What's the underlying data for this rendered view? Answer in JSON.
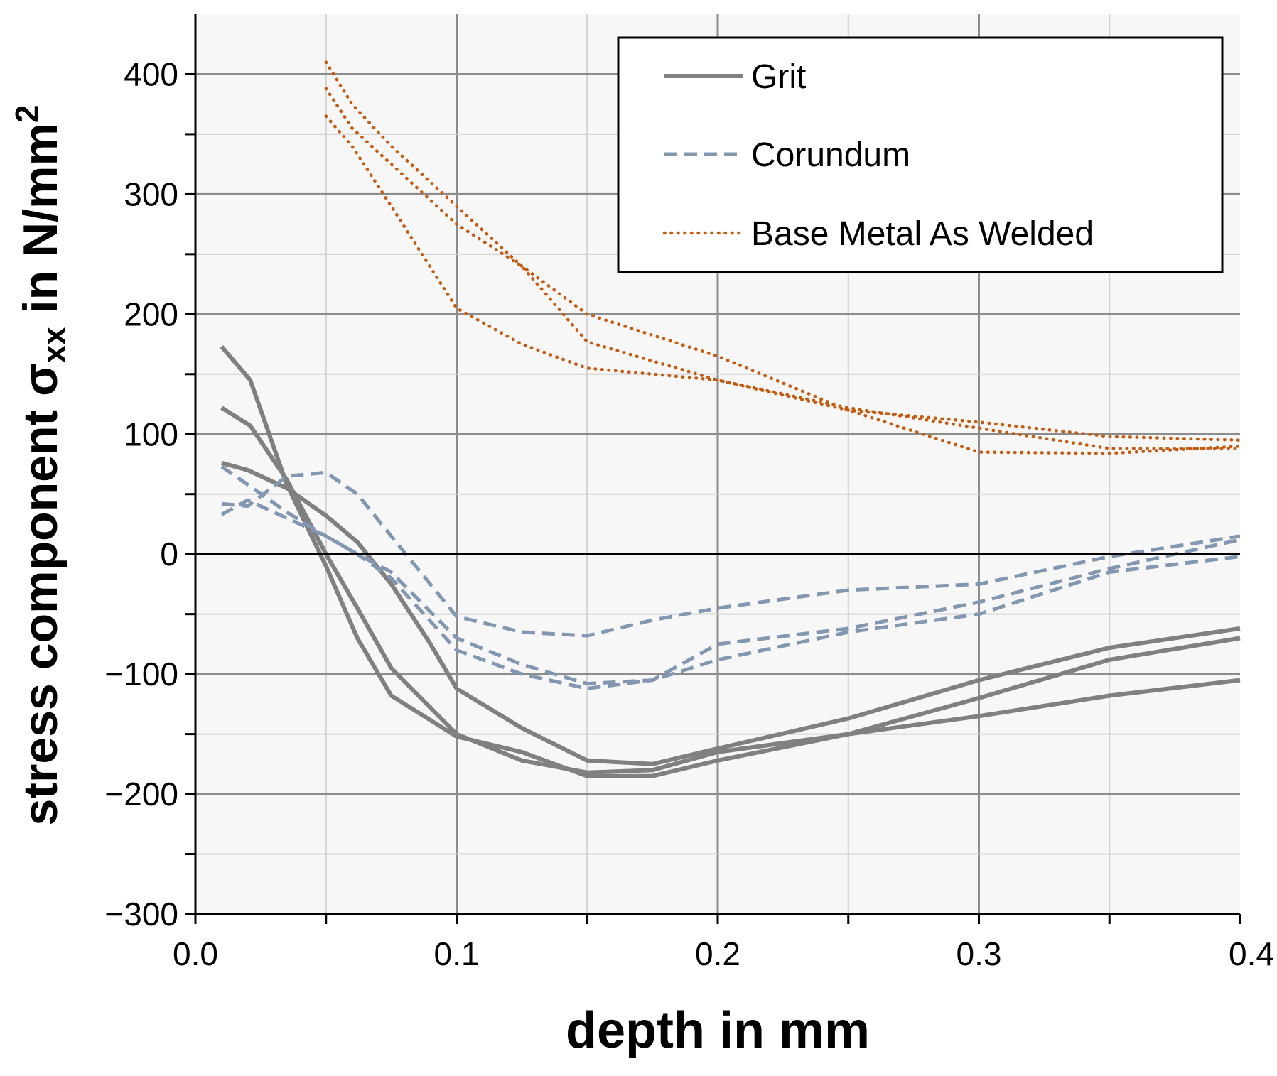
{
  "chart_data": {
    "type": "line",
    "xlabel": "depth in mm",
    "ylabel": {
      "main": "stress component σ",
      "sub": "xx",
      "unit": " in N/mm",
      "sup": "2"
    },
    "xlim": [
      0,
      0.4
    ],
    "ylim": [
      -300,
      450
    ],
    "x_ticks": [
      0,
      0.1,
      0.2,
      0.3,
      0.4
    ],
    "x_tick_labels": [
      "0.0",
      "0.1",
      "0.2",
      "0.3",
      "0.4"
    ],
    "x_minor_ticks": [
      0.05,
      0.15,
      0.25,
      0.35
    ],
    "y_ticks": [
      -300,
      -200,
      -100,
      0,
      100,
      200,
      300,
      400
    ],
    "y_tick_labels": [
      "−300",
      "−200",
      "−100",
      "0",
      "100",
      "200",
      "300",
      "400"
    ],
    "y_minor_ticks": [
      -250,
      -150,
      -50,
      50,
      150,
      250,
      350
    ],
    "grid": true,
    "legend_position": "top-right",
    "legend": [
      {
        "label": "Grit",
        "style": "solid",
        "color": "#808080"
      },
      {
        "label": "Corundum",
        "style": "dashed",
        "color": "#8497B0"
      },
      {
        "label": "Base Metal As Welded",
        "style": "dotted",
        "color": "#C55A11"
      }
    ],
    "series": [
      {
        "name": "Grit",
        "group": "Grit",
        "style": "solid",
        "color": "#808080",
        "x": [
          0.01,
          0.021,
          0.035,
          0.05,
          0.062,
          0.075,
          0.1,
          0.125,
          0.15,
          0.175,
          0.2,
          0.25,
          0.3,
          0.35,
          0.4
        ],
        "y": [
          173,
          145,
          58,
          -10,
          -70,
          -118,
          -152,
          -165,
          -185,
          -185,
          -172,
          -150,
          -120,
          -88,
          -70
        ]
      },
      {
        "name": "Grit",
        "group": "Grit",
        "style": "solid",
        "color": "#808080",
        "x": [
          0.01,
          0.021,
          0.035,
          0.05,
          0.062,
          0.075,
          0.1,
          0.125,
          0.15,
          0.175,
          0.2,
          0.25,
          0.3,
          0.35,
          0.4
        ],
        "y": [
          122,
          107,
          62,
          0,
          -45,
          -95,
          -150,
          -172,
          -182,
          -180,
          -165,
          -150,
          -135,
          -118,
          -105
        ]
      },
      {
        "name": "Grit",
        "group": "Grit",
        "style": "solid",
        "color": "#808080",
        "x": [
          0.01,
          0.02,
          0.035,
          0.05,
          0.062,
          0.075,
          0.09,
          0.1,
          0.125,
          0.15,
          0.175,
          0.2,
          0.25,
          0.3,
          0.35,
          0.4
        ],
        "y": [
          76,
          70,
          55,
          32,
          10,
          -25,
          -75,
          -112,
          -145,
          -172,
          -175,
          -162,
          -137,
          -105,
          -78,
          -62
        ]
      },
      {
        "name": "Corundum",
        "group": "Corundum",
        "style": "dashed",
        "color": "#8497B0",
        "x": [
          0.01,
          0.02,
          0.035,
          0.05,
          0.062,
          0.075,
          0.1,
          0.125,
          0.15,
          0.175,
          0.2,
          0.25,
          0.3,
          0.35,
          0.4
        ],
        "y": [
          73,
          58,
          35,
          15,
          0,
          -20,
          -80,
          -100,
          -112,
          -105,
          -75,
          -62,
          -40,
          -12,
          12
        ]
      },
      {
        "name": "Corundum",
        "group": "Corundum",
        "style": "dashed",
        "color": "#8497B0",
        "x": [
          0.01,
          0.02,
          0.035,
          0.05,
          0.062,
          0.075,
          0.1,
          0.125,
          0.15,
          0.175,
          0.2,
          0.25,
          0.3,
          0.35,
          0.4
        ],
        "y": [
          42,
          40,
          65,
          68,
          50,
          15,
          -52,
          -65,
          -68,
          -55,
          -45,
          -30,
          -25,
          -2,
          15
        ]
      },
      {
        "name": "Corundum",
        "group": "Corundum",
        "style": "dashed",
        "color": "#8497B0",
        "x": [
          0.01,
          0.02,
          0.035,
          0.05,
          0.062,
          0.075,
          0.1,
          0.125,
          0.15,
          0.175,
          0.2,
          0.25,
          0.3,
          0.35,
          0.4
        ],
        "y": [
          33,
          45,
          30,
          15,
          0,
          -15,
          -70,
          -92,
          -108,
          -105,
          -88,
          -65,
          -50,
          -15,
          -2
        ]
      },
      {
        "name": "Base Metal As Welded",
        "group": "Base Metal As Welded",
        "style": "dotted",
        "color": "#C55A11",
        "x": [
          0.05,
          0.06,
          0.075,
          0.1,
          0.125,
          0.15,
          0.2,
          0.25,
          0.3,
          0.35,
          0.4
        ],
        "y": [
          410,
          375,
          340,
          290,
          240,
          200,
          165,
          120,
          85,
          84,
          90
        ]
      },
      {
        "name": "Base Metal As Welded",
        "group": "Base Metal As Welded",
        "style": "dotted",
        "color": "#C55A11",
        "x": [
          0.05,
          0.06,
          0.075,
          0.1,
          0.125,
          0.15,
          0.2,
          0.25,
          0.3,
          0.35,
          0.4
        ],
        "y": [
          388,
          355,
          325,
          275,
          240,
          177,
          145,
          122,
          105,
          88,
          88
        ]
      },
      {
        "name": "Base Metal As Welded",
        "group": "Base Metal As Welded",
        "style": "dotted",
        "color": "#C55A11",
        "x": [
          0.05,
          0.06,
          0.075,
          0.1,
          0.125,
          0.15,
          0.2,
          0.25,
          0.3,
          0.35,
          0.4
        ],
        "y": [
          365,
          340,
          290,
          205,
          175,
          155,
          145,
          120,
          110,
          98,
          95
        ]
      }
    ]
  }
}
